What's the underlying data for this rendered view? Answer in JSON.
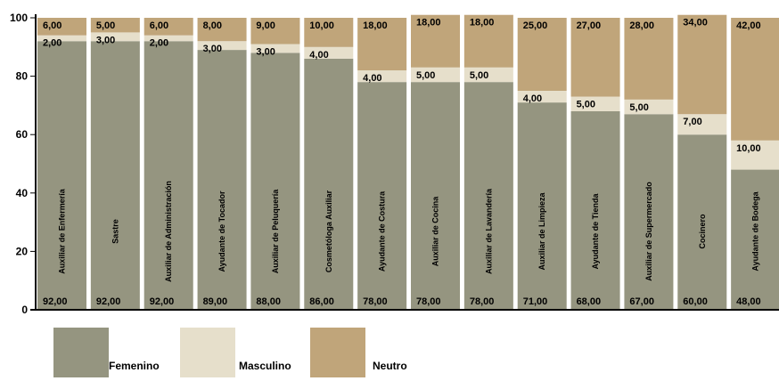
{
  "chart_data": {
    "type": "bar",
    "stacked": true,
    "title": "",
    "xlabel": "",
    "ylabel": "",
    "ylim": [
      0,
      100
    ],
    "yticks": [
      0,
      20,
      40,
      60,
      80,
      100
    ],
    "categories": [
      "Auxiliar de Enfermería",
      "Sastre",
      "Auxiliar de Administración",
      "Ayudante de Tocador",
      "Auxiliar de Peluquería",
      "Cosmetóloga Auxiliar",
      "Ayudante de Costura",
      "Auxiliar de Cocina",
      "Auxiliar de Lavandería",
      "Auxiliar de Limpieza",
      "Ayudante de Tienda",
      "Auxiliar de Supermercado",
      "Cocinero",
      "Ayudante de Bodega"
    ],
    "series": [
      {
        "name": "Femenino",
        "color": "#959580",
        "values": [
          92,
          92,
          92,
          89,
          88,
          86,
          78,
          78,
          78,
          71,
          68,
          67,
          60,
          48
        ],
        "labels": [
          "92,00",
          "92,00",
          "92,00",
          "89,00",
          "88,00",
          "86,00",
          "78,00",
          "78,00",
          "78,00",
          "71,00",
          "68,00",
          "67,00",
          "60,00",
          "48,00"
        ]
      },
      {
        "name": "Masculino",
        "color": "#e6dfcb",
        "values": [
          2,
          3,
          2,
          3,
          3,
          4,
          4,
          5,
          5,
          4,
          5,
          5,
          7,
          10
        ],
        "labels": [
          "2,00",
          "3,00",
          "2,00",
          "3,00",
          "3,00",
          "4,00",
          "4,00",
          "5,00",
          "5,00",
          "4,00",
          "5,00",
          "5,00",
          "7,00",
          "10,00"
        ]
      },
      {
        "name": "Neutro",
        "color": "#c0a57a",
        "values": [
          6,
          5,
          6,
          8,
          9,
          10,
          18,
          18,
          18,
          25,
          27,
          28,
          34,
          42
        ],
        "labels": [
          "6,00",
          "5,00",
          "6,00",
          "8,00",
          "9,00",
          "10,00",
          "18,00",
          "18,00",
          "18,00",
          "25,00",
          "27,00",
          "28,00",
          "34,00",
          "42,00"
        ]
      }
    ],
    "legend": "bottom-left",
    "grid": false
  }
}
